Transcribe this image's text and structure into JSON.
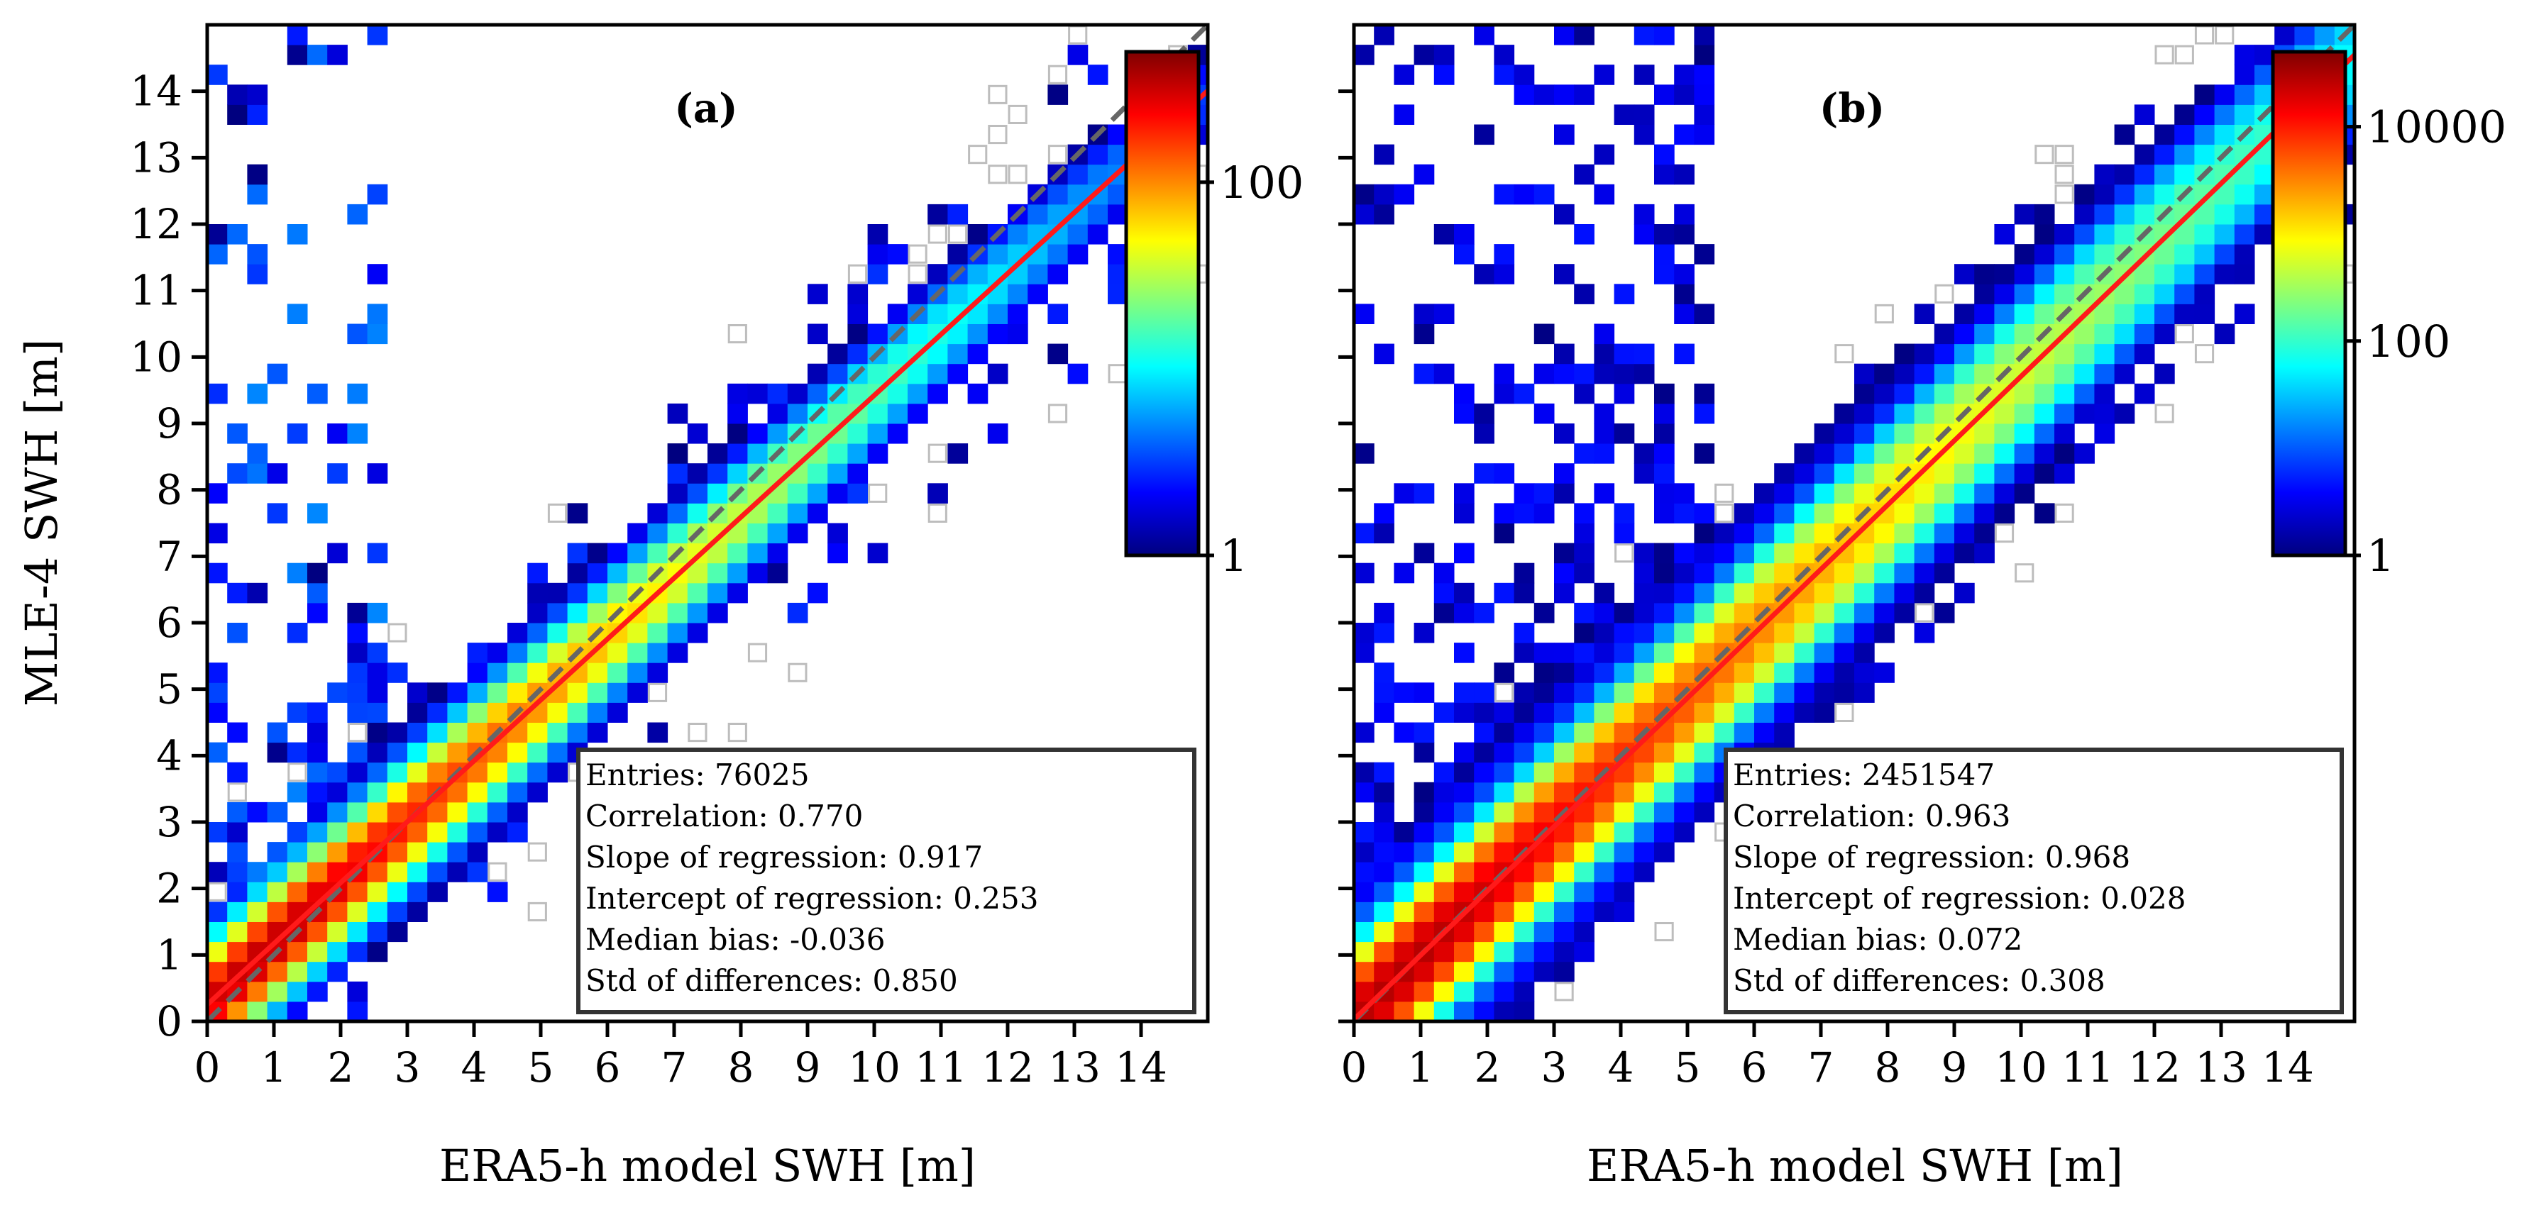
{
  "colors": {
    "regression_line": "#ff1a1a",
    "identity_line": "#666666",
    "empty_bin_outline": "#bdbdbd",
    "colormap": [
      "#00007f",
      "#0000ff",
      "#007fff",
      "#00ffff",
      "#7fff7f",
      "#ffff00",
      "#ff7f00",
      "#ff0000",
      "#7f0000"
    ]
  },
  "chart_data": [
    {
      "type": "heatmap",
      "panel_label": "(a)",
      "xlabel": "ERA5-h model SWH [m]",
      "ylabel": "MLE-4 SWH [m]",
      "xlim": [
        0,
        15
      ],
      "ylim": [
        0,
        15
      ],
      "bin_size": 0.3,
      "x_ticks": [
        "0",
        "1",
        "2",
        "3",
        "4",
        "5",
        "6",
        "7",
        "8",
        "9",
        "10",
        "11",
        "12",
        "13",
        "14"
      ],
      "y_ticks": [
        "0",
        "1",
        "2",
        "3",
        "4",
        "5",
        "6",
        "7",
        "8",
        "9",
        "10",
        "11",
        "12",
        "13",
        "14"
      ],
      "colorbar": {
        "scale": "log",
        "range": [
          1,
          500
        ],
        "ticks": [
          {
            "value": 1,
            "label": "1"
          },
          {
            "value": 100,
            "label": "100"
          }
        ]
      },
      "regression": {
        "slope": 0.917,
        "intercept": 0.253
      },
      "identity_line": true,
      "density": {
        "peak": 500,
        "core_sigma": 0.3,
        "spread_sigma": 0.55,
        "spread_scale": 40,
        "scale_log": 1.3,
        "tail_weight": 0.35,
        "upper_scatter_weight": 0.55,
        "upper_scatter_range": [
          0,
          2.6
        ],
        "seed": 11
      },
      "stats_box": {
        "entries": "Entries: 76025",
        "correlation": "Correlation: 0.770",
        "slope": "Slope of regression: 0.917",
        "intercept": "Intercept of regression: 0.253",
        "median_bias": "Median bias: -0.036",
        "std": "Std of differences: 0.850"
      }
    },
    {
      "type": "heatmap",
      "panel_label": "(b)",
      "xlabel": "ERA5-h model SWH [m]",
      "ylabel": "",
      "xlim": [
        0,
        15
      ],
      "ylim": [
        0,
        15
      ],
      "bin_size": 0.3,
      "x_ticks": [
        "0",
        "1",
        "2",
        "3",
        "4",
        "5",
        "6",
        "7",
        "8",
        "9",
        "10",
        "11",
        "12",
        "13",
        "14"
      ],
      "y_ticks": [
        "",
        "",
        "",
        "",
        "",
        "",
        "",
        "",
        "",
        "",
        "",
        "",
        "",
        "",
        ""
      ],
      "colorbar": {
        "scale": "log",
        "range": [
          1,
          50000
        ],
        "ticks": [
          {
            "value": 1,
            "label": "1"
          },
          {
            "value": 100,
            "label": "100"
          },
          {
            "value": 10000,
            "label": "10000"
          }
        ]
      },
      "regression": {
        "slope": 0.968,
        "intercept": 0.028
      },
      "identity_line": true,
      "density": {
        "peak": 50000,
        "core_sigma": 0.32,
        "spread_sigma": 0.7,
        "spread_scale": 90,
        "scale_log": 1.0,
        "tail_weight": 0.55,
        "upper_scatter_weight": 0.7,
        "upper_scatter_range": [
          0,
          5.5
        ],
        "seed": 29
      },
      "stats_box": {
        "entries": "Entries: 2451547",
        "correlation": "Correlation: 0.963",
        "slope": "Slope of regression: 0.968",
        "intercept": "Intercept of regression: 0.028",
        "median_bias": "Median bias: 0.072",
        "std": "Std of differences: 0.308"
      }
    }
  ]
}
